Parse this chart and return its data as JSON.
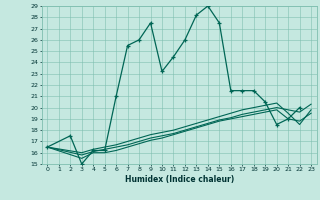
{
  "title": "",
  "xlabel": "Humidex (Indice chaleur)",
  "bg_color": "#c5e8e0",
  "grid_color": "#7fbfb0",
  "line_color": "#006655",
  "xlim": [
    -0.5,
    23.5
  ],
  "ylim": [
    15,
    29
  ],
  "xticks": [
    0,
    1,
    2,
    3,
    4,
    5,
    6,
    7,
    8,
    9,
    10,
    11,
    12,
    13,
    14,
    15,
    16,
    17,
    18,
    19,
    20,
    21,
    22,
    23
  ],
  "yticks": [
    15,
    16,
    17,
    18,
    19,
    20,
    21,
    22,
    23,
    24,
    25,
    26,
    27,
    28,
    29
  ],
  "curve1_x": [
    0,
    2,
    3,
    4,
    5,
    6,
    7,
    8,
    9,
    10,
    11,
    12,
    13,
    14,
    15,
    16,
    17,
    18,
    19,
    20,
    21,
    22
  ],
  "curve1_y": [
    16.5,
    17.5,
    15.0,
    16.2,
    16.2,
    21.0,
    25.5,
    26.0,
    27.5,
    23.2,
    24.5,
    26.0,
    28.2,
    29.0,
    27.5,
    21.5,
    21.5,
    21.5,
    20.5,
    18.5,
    19.0,
    20.0
  ],
  "curve2_x": [
    0,
    3,
    4,
    5,
    6,
    7,
    8,
    9,
    10,
    11,
    12,
    13,
    14,
    15,
    16,
    17,
    18,
    19,
    20,
    21,
    22,
    23
  ],
  "curve2_y": [
    16.5,
    16.0,
    16.3,
    16.5,
    16.7,
    17.0,
    17.3,
    17.6,
    17.8,
    18.0,
    18.3,
    18.6,
    18.9,
    19.2,
    19.5,
    19.8,
    20.0,
    20.2,
    20.4,
    19.5,
    18.5,
    19.8
  ],
  "curve3_x": [
    0,
    3,
    4,
    5,
    6,
    7,
    8,
    9,
    10,
    11,
    12,
    13,
    14,
    15,
    16,
    17,
    18,
    19,
    20,
    21,
    22,
    23
  ],
  "curve3_y": [
    16.5,
    15.8,
    16.1,
    16.3,
    16.5,
    16.7,
    17.0,
    17.3,
    17.5,
    17.7,
    18.0,
    18.3,
    18.6,
    18.9,
    19.1,
    19.4,
    19.6,
    19.8,
    20.0,
    19.8,
    19.6,
    20.3
  ],
  "curve4_x": [
    0,
    3,
    4,
    5,
    6,
    7,
    8,
    9,
    10,
    11,
    12,
    13,
    14,
    15,
    16,
    17,
    18,
    19,
    20,
    21,
    22,
    23
  ],
  "curve4_y": [
    16.5,
    15.5,
    16.0,
    16.0,
    16.2,
    16.5,
    16.8,
    17.1,
    17.3,
    17.6,
    17.9,
    18.2,
    18.5,
    18.8,
    19.0,
    19.2,
    19.4,
    19.6,
    19.8,
    19.0,
    18.8,
    19.5
  ]
}
